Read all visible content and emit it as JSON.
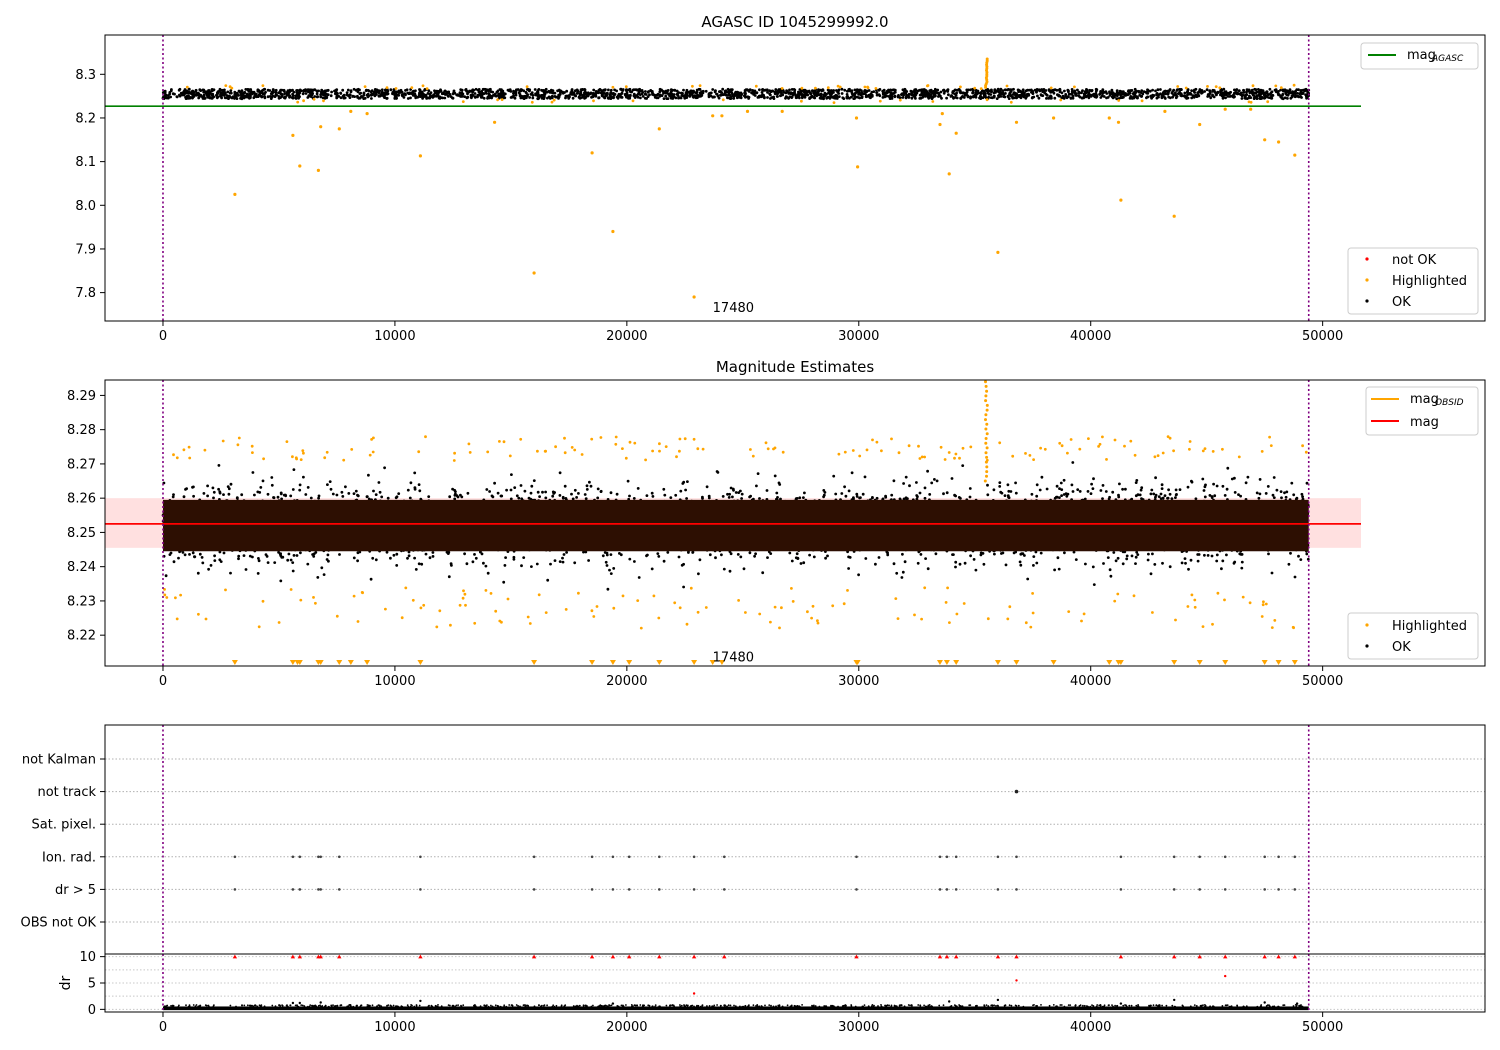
{
  "chart_data": [
    {
      "id": "top",
      "type": "scatter",
      "title": "AGASC ID 1045299992.0",
      "xlabel": "",
      "ylabel": "",
      "xlim": [
        -2500,
        57000
      ],
      "ylim": [
        7.735,
        8.39
      ],
      "x_ticks": [
        0,
        10000,
        20000,
        30000,
        40000,
        50000
      ],
      "y_ticks": [
        7.8,
        7.9,
        8.0,
        8.1,
        8.2,
        8.3
      ],
      "y_tick_labels": [
        "7.8",
        "7.9",
        "8.0",
        "8.1",
        "8.2",
        "8.3"
      ],
      "vlines": [
        0,
        49400
      ],
      "annotation": {
        "text": "17480",
        "x": 23700,
        "y": 7.765
      },
      "mag_agasc": 8.227,
      "main_band": {
        "x_start": 0,
        "x_end": 49400,
        "y_center": 8.255,
        "y_spread": 0.012
      },
      "spike": {
        "x": 35500,
        "y_from": 8.27,
        "y_to": 8.335
      },
      "highlighted_points": [
        [
          3100,
          8.025
        ],
        [
          5600,
          8.16
        ],
        [
          5900,
          8.09
        ],
        [
          6700,
          8.08
        ],
        [
          6800,
          8.18
        ],
        [
          7600,
          8.175
        ],
        [
          8100,
          8.215
        ],
        [
          8800,
          8.21
        ],
        [
          11100,
          8.113
        ],
        [
          14300,
          8.19
        ],
        [
          16000,
          7.845
        ],
        [
          18500,
          8.12
        ],
        [
          19400,
          7.94
        ],
        [
          21400,
          8.175
        ],
        [
          22900,
          7.79
        ],
        [
          23700,
          8.205
        ],
        [
          24100,
          8.205
        ],
        [
          25200,
          8.215
        ],
        [
          26700,
          8.215
        ],
        [
          29900,
          8.2
        ],
        [
          29950,
          8.088
        ],
        [
          33500,
          8.185
        ],
        [
          33600,
          8.21
        ],
        [
          33900,
          8.072
        ],
        [
          34200,
          8.165
        ],
        [
          36000,
          7.892
        ],
        [
          36800,
          8.19
        ],
        [
          38400,
          8.2
        ],
        [
          40800,
          8.2
        ],
        [
          41300,
          8.012
        ],
        [
          41200,
          8.19
        ],
        [
          43200,
          8.215
        ],
        [
          43600,
          7.975
        ],
        [
          44700,
          8.185
        ],
        [
          45800,
          8.22
        ],
        [
          47500,
          8.15
        ],
        [
          48100,
          8.145
        ],
        [
          48800,
          8.115
        ],
        [
          46900,
          8.22
        ]
      ],
      "legend_lines": [
        {
          "label": "mag",
          "sub": "AGASC",
          "color": "#008000"
        }
      ],
      "legend_points": [
        {
          "label": "not OK",
          "color": "#ff0000"
        },
        {
          "label": "Highlighted",
          "color": "#ffa500"
        },
        {
          "label": "OK",
          "color": "#000000"
        }
      ]
    },
    {
      "id": "mid",
      "type": "scatter",
      "title": "Magnitude Estimates",
      "xlabel": "",
      "ylabel": "",
      "xlim": [
        -2500,
        57000
      ],
      "ylim": [
        8.211,
        8.2945
      ],
      "x_ticks": [
        0,
        10000,
        20000,
        30000,
        40000,
        50000
      ],
      "y_ticks": [
        8.22,
        8.23,
        8.24,
        8.25,
        8.26,
        8.27,
        8.28,
        8.29
      ],
      "y_tick_labels": [
        "8.22",
        "8.23",
        "8.24",
        "8.25",
        "8.26",
        "8.27",
        "8.28",
        "8.29"
      ],
      "vlines": [
        0,
        49400
      ],
      "annotation": {
        "text": "17480",
        "x": 23700,
        "y": 8.2135
      },
      "mag_mean": 8.2525,
      "mag_band": [
        8.2455,
        8.26
      ],
      "dense_band": [
        8.2445,
        8.2595
      ],
      "main_band": {
        "x_start": 0,
        "x_end": 49400,
        "y_center": 8.2525,
        "y_spread": 0.0125
      },
      "spike": {
        "x": 35500,
        "y_from": 8.265,
        "y_to": 8.294
      },
      "clipped_markers_x": [
        3100,
        5600,
        5800,
        5900,
        6700,
        6800,
        7600,
        8100,
        8800,
        11100,
        16000,
        18500,
        19400,
        20100,
        21400,
        22900,
        23700,
        24100,
        29900,
        29950,
        33500,
        33800,
        34200,
        36000,
        36800,
        38400,
        40800,
        41200,
        41300,
        43600,
        44700,
        45800,
        47500,
        48100,
        48800
      ],
      "legend_lines": [
        {
          "label": "mag",
          "sub": "OBSID",
          "color": "#ffa500"
        },
        {
          "label": "mag",
          "sub": "",
          "color": "#ff0000"
        }
      ],
      "legend_points": [
        {
          "label": "Highlighted",
          "color": "#ffa500"
        },
        {
          "label": "OK",
          "color": "#000000"
        }
      ]
    },
    {
      "id": "flags",
      "type": "scatter",
      "title": "",
      "xlim": [
        -2500,
        57000
      ],
      "categories": [
        "OBS not OK",
        "dr > 5",
        "Ion. rad.",
        "Sat. pixel.",
        "not track",
        "not Kalman"
      ],
      "vlines": [
        0,
        49400
      ],
      "flag_x": [
        3100,
        5600,
        5900,
        6700,
        6800,
        7600,
        11100,
        16000,
        18500,
        19400,
        20100,
        21400,
        22900,
        24200,
        29900,
        33500,
        33800,
        34200,
        36000,
        36800,
        41300,
        43600,
        44700,
        45800,
        47500,
        48100,
        48800
      ],
      "not_track_x": [
        36800
      ]
    },
    {
      "id": "dr",
      "type": "scatter",
      "title": "",
      "xlim": [
        -2500,
        57000
      ],
      "ylim": [
        -0.5,
        10.5
      ],
      "ylabel": "dr",
      "x_ticks": [
        0,
        10000,
        20000,
        30000,
        40000,
        50000
      ],
      "y_ticks": [
        0,
        5,
        10
      ],
      "y_tick_labels": [
        "0",
        "5",
        "10"
      ],
      "vlines": [
        0,
        49400
      ],
      "clip_value": 10,
      "outliers": [
        [
          22900,
          3.0
        ],
        [
          36800,
          5.5
        ],
        [
          45800,
          6.3
        ],
        [
          33900,
          1.5
        ],
        [
          36000,
          1.8
        ],
        [
          43600,
          1.8
        ],
        [
          11100,
          1.6
        ],
        [
          5600,
          1.2
        ],
        [
          5900,
          1.2
        ],
        [
          6800,
          1.3
        ],
        [
          47500,
          1.3
        ],
        [
          48900,
          1.1
        ],
        [
          19400,
          1.1
        ],
        [
          41300,
          1.1
        ]
      ]
    }
  ]
}
